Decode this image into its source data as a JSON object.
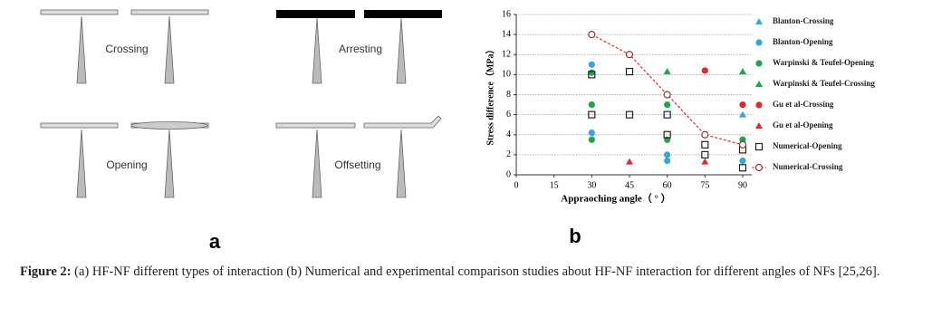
{
  "panel_a": {
    "labels": [
      "Crossing",
      "Arresting",
      "Opening",
      "Offsetting"
    ],
    "panel_label": "a"
  },
  "chart_data": {
    "type": "scatter",
    "panel_label": "b",
    "x_label": "Appraoching angle（ ° ）",
    "y_label": "Stress difference（MPa）",
    "xlim": [
      0,
      90
    ],
    "ylim": [
      0,
      16
    ],
    "xticks": [
      0,
      15,
      30,
      45,
      60,
      75,
      90
    ],
    "yticks": [
      0,
      2,
      4,
      6,
      8,
      10,
      12,
      14,
      16
    ],
    "grid": true,
    "series": [
      {
        "name": "Blanton-Crossing",
        "color": "#2fa8df",
        "marker": "triangle",
        "x": [
          90
        ],
        "y": [
          6
        ]
      },
      {
        "name": "Blanton-Opening",
        "color": "#2fa8df",
        "marker": "circle",
        "x": [
          30,
          30,
          60,
          60,
          90
        ],
        "y": [
          11,
          4.2,
          2,
          1.4,
          1.4
        ]
      },
      {
        "name": "Warpinski & Teufel-Opening",
        "color": "#1aa84a",
        "marker": "circle",
        "x": [
          30,
          30,
          30,
          60,
          60,
          90
        ],
        "y": [
          10.2,
          7,
          3.5,
          7,
          3.5,
          3.5
        ]
      },
      {
        "name": "Warpinski & Teufel-Crossing",
        "color": "#1aa84a",
        "marker": "triangle",
        "x": [
          60,
          90
        ],
        "y": [
          10.3,
          10.3
        ]
      },
      {
        "name": "Gu et al-Crossing",
        "color": "#e8262a",
        "marker": "circle",
        "x": [
          75,
          90
        ],
        "y": [
          10.4,
          7
        ]
      },
      {
        "name": "Gu et al-Opening",
        "color": "#e8262a",
        "marker": "triangle",
        "x": [
          45,
          75
        ],
        "y": [
          1.3,
          1.3
        ]
      },
      {
        "name": "Numerical-Opening",
        "color": "#222222",
        "marker": "square",
        "x": [
          30,
          30,
          45,
          45,
          60,
          60,
          75,
          75,
          90,
          90
        ],
        "y": [
          10,
          6,
          10.3,
          6,
          6,
          4,
          3,
          2,
          2.5,
          0.7
        ]
      },
      {
        "name": "Numerical-Crossing",
        "color": "#e8262a",
        "marker": "line",
        "x": [
          30,
          45,
          60,
          75,
          90
        ],
        "y": [
          14,
          12,
          8,
          4,
          3
        ]
      }
    ]
  },
  "caption": {
    "label": "Figure 2:",
    "text": "(a) HF-NF different types of interaction (b) Numerical and experimental comparison studies about HF-NF interaction for different angles of NFs [25,26]."
  }
}
